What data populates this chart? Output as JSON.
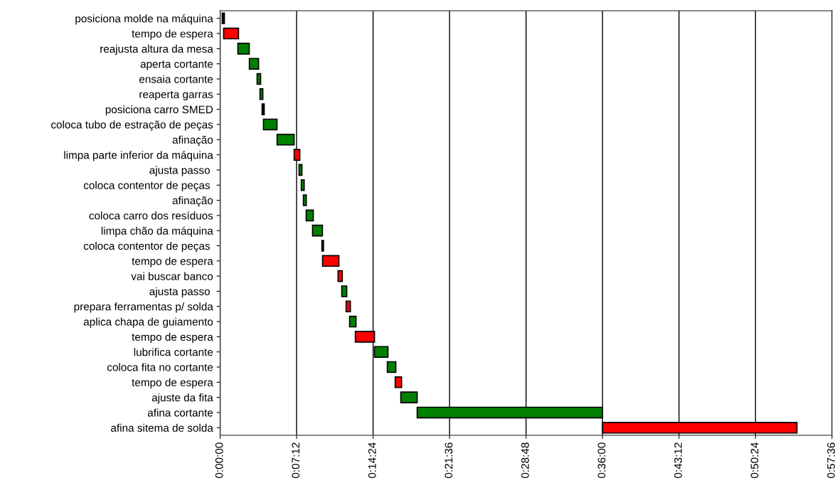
{
  "chart_data": {
    "type": "bar",
    "orientation": "horizontal",
    "grid": "x",
    "legend": false,
    "categories": [
      "posiciona molde na máquina",
      "tempo de espera",
      "reajusta altura da mesa",
      "aperta cortante",
      "ensaia cortante",
      "reaperta garras",
      "posiciona carro SMED",
      "coloca tubo de estração de peças",
      "afinação",
      "limpa parte inferior da máquina",
      "ajusta passo ",
      "coloca contentor de peças ",
      "afinação",
      "coloca carro dos resíduos",
      "limpa chão da máquina",
      "coloca contentor de peças ",
      "tempo de espera",
      "vai buscar banco",
      "ajusta passo ",
      "prepara ferramentas p/ solda",
      "aplica chapa de guiamento",
      "tempo de espera",
      "lubrifica cortante",
      "coloca fita no cortante",
      "tempo de espera",
      "ajuste da fita",
      "afina cortante",
      "afina sitema de solda"
    ],
    "base": [
      0.2,
      0.33,
      1.67,
      2.75,
      3.48,
      3.75,
      3.95,
      4.08,
      5.36,
      6.97,
      7.43,
      7.64,
      7.84,
      8.1,
      8.7,
      9.58,
      9.64,
      11.1,
      11.45,
      11.86,
      12.19,
      12.73,
      14.53,
      15.74,
      16.48,
      17.01,
      18.55,
      36.0
    ],
    "values": [
      0.2,
      1.4,
      1.07,
      0.87,
      0.33,
      0.27,
      0.2,
      1.27,
      1.6,
      0.53,
      0.27,
      0.27,
      0.27,
      0.67,
      0.93,
      0.15,
      1.54,
      0.4,
      0.47,
      0.4,
      0.6,
      1.8,
      1.27,
      0.8,
      0.6,
      1.54,
      17.45,
      18.3
    ],
    "colors": [
      "#000000",
      "#ff0000",
      "#008000",
      "#008000",
      "#008000",
      "#008000",
      "#000000",
      "#008000",
      "#008000",
      "#ff0000",
      "#008000",
      "#008000",
      "#008000",
      "#008000",
      "#008000",
      "#000000",
      "#ff0000",
      "#ff0000",
      "#008000",
      "#ff0000",
      "#008000",
      "#ff0000",
      "#008000",
      "#008000",
      "#ff0000",
      "#008000",
      "#008000",
      "#ff0000"
    ],
    "xlim": [
      0,
      57.6
    ],
    "xticks": [
      {
        "value": 0,
        "label": "0:00:00"
      },
      {
        "value": 7.2,
        "label": "0:07:12"
      },
      {
        "value": 14.4,
        "label": "0:14:24"
      },
      {
        "value": 21.6,
        "label": "0:21:36"
      },
      {
        "value": 28.8,
        "label": "0:28:48"
      },
      {
        "value": 36,
        "label": "0:36:00"
      },
      {
        "value": 43.2,
        "label": "0:43:12"
      },
      {
        "value": 50.4,
        "label": "0:50:24"
      },
      {
        "value": 57.6,
        "label": "0:57:36"
      }
    ]
  }
}
